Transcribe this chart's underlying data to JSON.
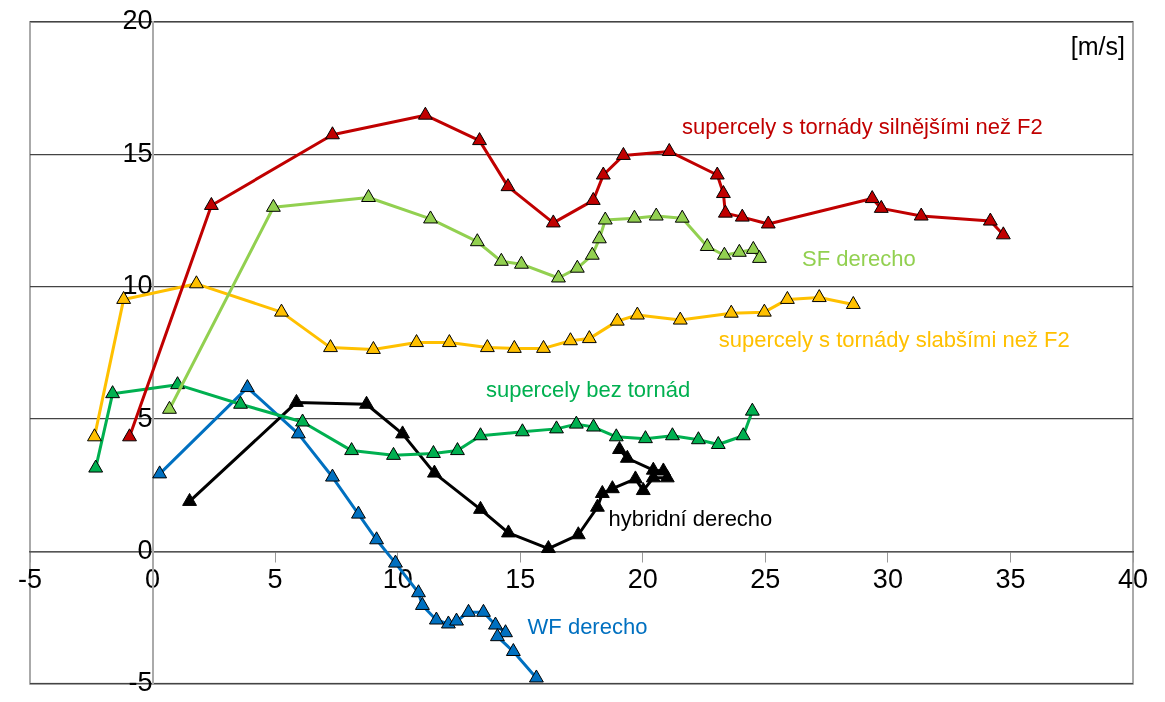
{
  "chart_data": {
    "type": "line",
    "marker": "triangle",
    "grid": "y",
    "xlim": [
      -5,
      40
    ],
    "ylim": [
      -5,
      20
    ],
    "xticks": [
      -5,
      0,
      5,
      10,
      15,
      20,
      25,
      30,
      35,
      40
    ],
    "yticks": [
      -5,
      0,
      5,
      10,
      15,
      20
    ],
    "annotations": [
      "[m/s]"
    ],
    "series": [
      {
        "name": "supercely s tornády silnějšími než F2",
        "color": "#c00000",
        "x": [
          -0.94,
          2.4,
          7.34,
          11.13,
          13.34,
          14.5,
          16.35,
          17.98,
          18.39,
          19.21,
          21.08,
          23.04,
          23.29,
          23.37,
          24.06,
          25.12,
          29.36,
          29.73,
          31.36,
          34.18,
          34.71
        ],
        "values": [
          4.33,
          13.07,
          15.74,
          16.48,
          15.52,
          13.78,
          12.41,
          13.26,
          14.22,
          14.96,
          15.11,
          14.22,
          13.52,
          12.78,
          12.63,
          12.37,
          13.33,
          12.96,
          12.67,
          12.48,
          11.96
        ]
      },
      {
        "name": "SF derecho",
        "color": "#92d050",
        "x": [
          0.69,
          4.93,
          8.81,
          11.34,
          13.25,
          14.23,
          15.05,
          16.56,
          17.33,
          17.94,
          18.23,
          18.47,
          19.66,
          20.55,
          21.61,
          22.63,
          23.33,
          23.94,
          24.51,
          24.76
        ],
        "values": [
          5.37,
          13.0,
          13.37,
          12.56,
          11.7,
          10.96,
          10.85,
          10.33,
          10.7,
          11.19,
          11.81,
          12.52,
          12.59,
          12.67,
          12.59,
          11.52,
          11.19,
          11.3,
          11.41,
          11.07
        ]
      },
      {
        "name": "supercely s tornády slabšími než F2",
        "color": "#ffc000",
        "x": [
          -2.37,
          -1.18,
          1.79,
          5.26,
          7.26,
          9.01,
          10.77,
          12.11,
          13.66,
          14.76,
          15.95,
          17.05,
          17.82,
          18.96,
          19.78,
          21.53,
          23.61,
          24.96,
          25.9,
          27.2,
          28.59
        ],
        "values": [
          4.33,
          9.52,
          10.11,
          9.04,
          7.7,
          7.63,
          7.89,
          7.89,
          7.7,
          7.67,
          7.67,
          7.96,
          8.04,
          8.7,
          8.93,
          8.74,
          9.0,
          9.04,
          9.52,
          9.59,
          9.33
        ]
      },
      {
        "name": "supercely bez tornád",
        "color": "#00b050",
        "x": [
          -2.32,
          -1.63,
          1.02,
          3.59,
          6.12,
          8.12,
          9.83,
          11.46,
          12.44,
          13.38,
          15.09,
          16.48,
          17.29,
          17.99,
          18.92,
          20.11,
          21.21,
          22.27,
          23.08,
          24.1,
          24.47
        ],
        "values": [
          3.15,
          5.96,
          6.3,
          5.56,
          4.89,
          3.81,
          3.63,
          3.7,
          3.81,
          4.37,
          4.52,
          4.63,
          4.81,
          4.7,
          4.33,
          4.26,
          4.37,
          4.22,
          4.04,
          4.37,
          5.3
        ]
      },
      {
        "name": "hybridní derecho",
        "color": "#000000",
        "x": [
          1.51,
          5.87,
          8.73,
          10.2,
          11.5,
          13.38,
          14.52,
          16.15,
          17.37,
          18.15,
          18.35,
          18.76,
          19.7,
          20.02,
          20.43,
          21.0,
          20.84,
          20.43,
          19.37,
          19.05
        ],
        "values": [
          1.89,
          5.63,
          5.56,
          4.44,
          2.96,
          1.59,
          0.7,
          0.11,
          0.63,
          1.67,
          2.19,
          2.37,
          2.74,
          2.3,
          2.78,
          2.78,
          3.04,
          3.07,
          3.52,
          3.85
        ]
      },
      {
        "name": "WF derecho",
        "color": "#0070c0",
        "x": [
          0.29,
          3.87,
          5.95,
          7.34,
          8.4,
          9.14,
          9.91,
          10.85,
          11.01,
          11.58,
          12.07,
          12.4,
          12.89,
          13.5,
          13.99,
          14.4,
          14.07,
          14.72,
          15.66
        ],
        "values": [
          2.93,
          6.19,
          4.44,
          2.81,
          1.41,
          0.44,
          -0.44,
          -1.56,
          -2.04,
          -2.59,
          -2.74,
          -2.63,
          -2.3,
          -2.3,
          -2.78,
          -3.07,
          -3.22,
          -3.78,
          -4.78
        ]
      }
    ]
  }
}
